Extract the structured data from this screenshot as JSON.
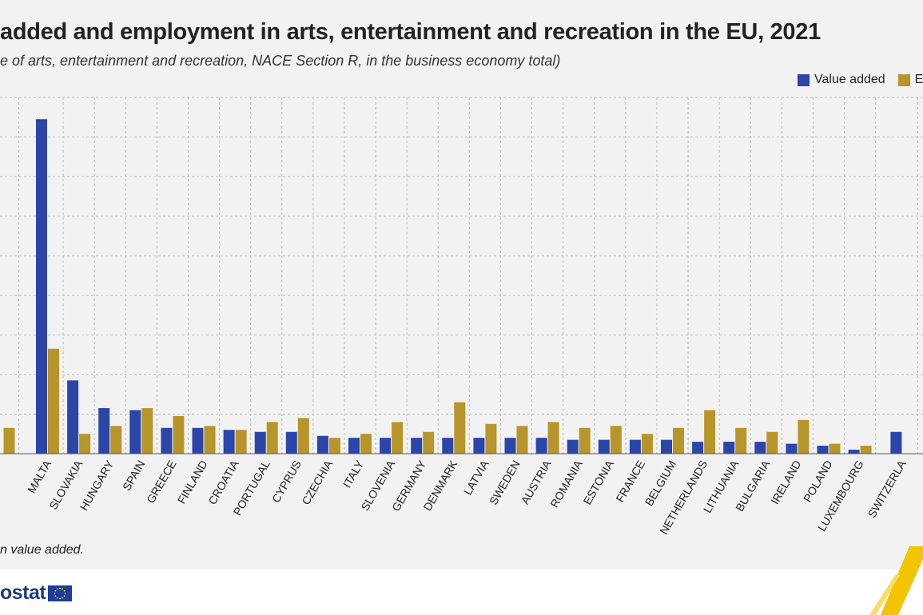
{
  "title": "added and employment in arts, entertainment and recreation in the EU, 2021",
  "subtitle": "e of arts, entertainment and recreation, NACE Section R, in the business economy total)",
  "note": "n value added.",
  "brand": {
    "text": "ostat",
    "logo_icon": "eu-flag-icon"
  },
  "colors": {
    "value_added": "#2b45a8",
    "employment": "#b7952a",
    "grid": "#bdbdbd",
    "background": "#f2f2f2"
  },
  "legend": {
    "value_added_label": "Value added",
    "employment_label": "Er"
  },
  "chart_data": {
    "type": "bar",
    "title": "added and employment in arts, entertainment and recreation in the EU, 2021",
    "subtitle": "e of arts, entertainment and recreation, NACE Section R, in the business economy total)",
    "xlabel": "",
    "ylabel": "",
    "ylim": [
      0,
      9
    ],
    "grid": true,
    "legend_position": "top-right",
    "categories": [
      "",
      "MALTA",
      "SLOVAKIA",
      "HUNGARY",
      "SPAIN",
      "GREECE",
      "FINLAND",
      "CROATIA",
      "PORTUGAL",
      "CYPRUS",
      "CZECHIA",
      "ITALY",
      "SLOVENIA",
      "GERMANY",
      "DENMARK",
      "LATVIA",
      "SWEDEN",
      "AUSTRIA",
      "ROMANIA",
      "ESTONIA",
      "FRANCE",
      "BELGIUM",
      "NETHERLANDS",
      "LITHUANIA",
      "BULGARIA",
      "IRELAND",
      "POLAND",
      "LUXEMBOURG",
      "SWITZERLA"
    ],
    "series": [
      {
        "name": "Value added",
        "values": [
          null,
          8.45,
          1.85,
          1.15,
          1.1,
          0.65,
          0.65,
          0.6,
          0.55,
          0.55,
          0.45,
          0.4,
          0.4,
          0.4,
          0.4,
          0.4,
          0.4,
          0.4,
          0.35,
          0.35,
          0.35,
          0.35,
          0.3,
          0.3,
          0.3,
          0.25,
          0.2,
          0.1,
          0.55
        ]
      },
      {
        "name": "Er",
        "values": [
          0.65,
          2.65,
          0.5,
          0.7,
          1.15,
          0.95,
          0.7,
          0.6,
          0.8,
          0.9,
          0.4,
          0.5,
          0.8,
          0.55,
          1.3,
          0.75,
          0.7,
          0.8,
          0.65,
          0.7,
          0.5,
          0.65,
          1.1,
          0.65,
          0.55,
          0.85,
          0.25,
          0.2,
          null
        ]
      }
    ]
  }
}
